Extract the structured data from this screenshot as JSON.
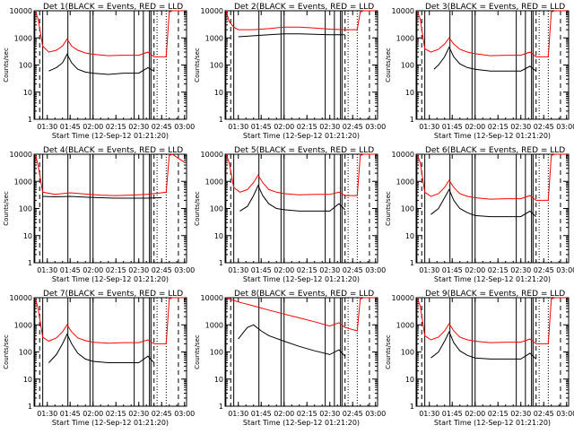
{
  "chart_data": {
    "type": "line",
    "grid": "3x3",
    "ylabel": "Counts/sec",
    "xlabel": "Start Time (12-Sep-12 01:21:20)",
    "yscale": "log",
    "ylim": [
      1,
      10000
    ],
    "ytick_labels": [
      "1",
      "10",
      "100",
      "1000",
      "10000"
    ],
    "xlim": [
      "01:21:20",
      "03:01:20"
    ],
    "xtick_labels": [
      "01:30",
      "01:45",
      "02:00",
      "02:15",
      "02:30",
      "02:45",
      "03:00"
    ],
    "series_colors": {
      "black": "#000000",
      "red": "#ff0000"
    },
    "panels": [
      {
        "title": "Det 1(BLACK = Events, RED = LLD",
        "series": [
          {
            "color": "black",
            "x": [
              "01:31",
              "01:36",
              "01:40",
              "01:43",
              "01:46",
              "01:50",
              "01:55",
              "02:00",
              "02:10",
              "02:20",
              "02:30",
              "02:36",
              "02:40"
            ],
            "y": [
              60,
              80,
              120,
              250,
              120,
              70,
              55,
              50,
              45,
              50,
              50,
              80,
              60
            ]
          },
          {
            "color": "red",
            "x": [
              "01:22",
              "01:24",
              "01:27",
              "01:31",
              "01:36",
              "01:40",
              "01:43",
              "01:46",
              "01:50",
              "01:55",
              "02:00",
              "02:10",
              "02:20",
              "02:30",
              "02:36",
              "02:40",
              "02:48",
              "02:50",
              "02:52",
              "03:00"
            ],
            "y": [
              10000,
              5000,
              500,
              300,
              350,
              500,
              900,
              500,
              350,
              280,
              250,
              220,
              230,
              230,
              300,
              200,
              200,
              9000,
              10000,
              10000
            ]
          }
        ]
      },
      {
        "title": "Det 2(BLACK = Events, RED = LLD",
        "series": [
          {
            "color": "black",
            "x": [
              "01:30",
              "01:40",
              "01:50",
              "02:00",
              "02:10",
              "02:20",
              "02:30",
              "02:40"
            ],
            "y": [
              1100,
              1200,
              1300,
              1400,
              1400,
              1350,
              1300,
              1300
            ]
          },
          {
            "color": "red",
            "x": [
              "01:22",
              "01:24",
              "01:27",
              "01:30",
              "01:40",
              "01:50",
              "02:00",
              "02:10",
              "02:20",
              "02:30",
              "02:40",
              "02:48",
              "02:50",
              "02:52",
              "03:00"
            ],
            "y": [
              10000,
              4000,
              2500,
              2000,
              2000,
              2200,
              2500,
              2500,
              2300,
              2100,
              2000,
              2000,
              9000,
              10000,
              10000
            ]
          }
        ]
      },
      {
        "title": "Det 3(BLACK = Events, RED = LLD",
        "series": [
          {
            "color": "black",
            "x": [
              "01:33",
              "01:36",
              "01:40",
              "01:43",
              "01:46",
              "01:50",
              "01:55",
              "02:00",
              "02:10",
              "02:20",
              "02:30",
              "02:36",
              "02:40"
            ],
            "y": [
              70,
              100,
              200,
              450,
              200,
              110,
              80,
              70,
              60,
              60,
              60,
              90,
              60
            ]
          },
          {
            "color": "red",
            "x": [
              "01:22",
              "01:24",
              "01:27",
              "01:31",
              "01:36",
              "01:40",
              "01:43",
              "01:46",
              "01:50",
              "01:55",
              "02:00",
              "02:10",
              "02:20",
              "02:30",
              "02:36",
              "02:40",
              "02:48",
              "02:50",
              "02:52",
              "03:00"
            ],
            "y": [
              10000,
              5000,
              400,
              300,
              380,
              600,
              1000,
              600,
              380,
              300,
              260,
              220,
              230,
              230,
              300,
              200,
              200,
              9000,
              10000,
              10000
            ]
          }
        ]
      },
      {
        "title": "Det 4(BLACK = Events, RED = LLD",
        "series": [
          {
            "color": "black",
            "x": [
              "01:27",
              "01:35",
              "01:45",
              "01:55",
              "02:05",
              "02:15",
              "02:25",
              "02:35",
              "02:45"
            ],
            "y": [
              280,
              270,
              280,
              260,
              250,
              240,
              240,
              240,
              250
            ]
          },
          {
            "color": "red",
            "x": [
              "01:22",
              "01:24",
              "01:27",
              "01:35",
              "01:45",
              "01:55",
              "02:05",
              "02:15",
              "02:25",
              "02:35",
              "02:45",
              "02:48",
              "02:50",
              "02:52",
              "03:00"
            ],
            "y": [
              10000,
              4000,
              400,
              330,
              380,
              340,
              310,
              300,
              310,
              330,
              380,
              400,
              9000,
              10000,
              5000
            ]
          }
        ]
      },
      {
        "title": "Det 5(BLACK = Events, RED = LLD",
        "series": [
          {
            "color": "black",
            "x": [
              "01:31",
              "01:36",
              "01:40",
              "01:43",
              "01:46",
              "01:50",
              "01:55",
              "02:00",
              "02:10",
              "02:20",
              "02:30",
              "02:36",
              "02:40"
            ],
            "y": [
              80,
              120,
              300,
              700,
              300,
              150,
              100,
              90,
              80,
              80,
              80,
              150,
              90
            ]
          },
          {
            "color": "red",
            "x": [
              "01:22",
              "01:24",
              "01:27",
              "01:31",
              "01:36",
              "01:40",
              "01:43",
              "01:46",
              "01:50",
              "01:55",
              "02:00",
              "02:10",
              "02:20",
              "02:30",
              "02:36",
              "02:40",
              "02:48",
              "02:50",
              "02:52",
              "03:00"
            ],
            "y": [
              10000,
              5000,
              600,
              400,
              500,
              900,
              1700,
              900,
              500,
              400,
              350,
              320,
              330,
              330,
              400,
              300,
              300,
              9000,
              10000,
              10000
            ]
          }
        ]
      },
      {
        "title": "Det 6(BLACK = Events, RED = LLD",
        "series": [
          {
            "color": "black",
            "x": [
              "01:31",
              "01:36",
              "01:40",
              "01:43",
              "01:46",
              "01:50",
              "01:55",
              "02:00",
              "02:10",
              "02:20",
              "02:30",
              "02:36",
              "02:40"
            ],
            "y": [
              60,
              100,
              250,
              500,
              200,
              100,
              70,
              55,
              50,
              50,
              50,
              80,
              50
            ]
          },
          {
            "color": "red",
            "x": [
              "01:22",
              "01:24",
              "01:27",
              "01:31",
              "01:36",
              "01:40",
              "01:43",
              "01:46",
              "01:50",
              "01:55",
              "02:00",
              "02:10",
              "02:20",
              "02:30",
              "02:36",
              "02:40",
              "02:48",
              "02:50",
              "02:52",
              "03:00"
            ],
            "y": [
              10000,
              5000,
              400,
              280,
              350,
              600,
              1100,
              600,
              350,
              280,
              250,
              220,
              230,
              230,
              300,
              200,
              200,
              9000,
              10000,
              10000
            ]
          }
        ]
      },
      {
        "title": "Det 7(BLACK = Events, RED = LLD",
        "series": [
          {
            "color": "black",
            "x": [
              "01:31",
              "01:36",
              "01:40",
              "01:43",
              "01:46",
              "01:50",
              "01:55",
              "02:00",
              "02:10",
              "02:20",
              "02:30",
              "02:36",
              "02:40"
            ],
            "y": [
              40,
              80,
              200,
              450,
              200,
              90,
              55,
              45,
              40,
              40,
              40,
              70,
              40
            ]
          },
          {
            "color": "red",
            "x": [
              "01:22",
              "01:24",
              "01:27",
              "01:31",
              "01:36",
              "01:40",
              "01:43",
              "01:46",
              "01:50",
              "01:55",
              "02:00",
              "02:10",
              "02:20",
              "02:30",
              "02:36",
              "02:40",
              "02:48",
              "02:50",
              "02:52",
              "03:00"
            ],
            "y": [
              10000,
              4000,
              350,
              250,
              330,
              550,
              1000,
              550,
              330,
              260,
              230,
              210,
              220,
              220,
              280,
              200,
              200,
              9000,
              10000,
              10000
            ]
          }
        ]
      },
      {
        "title": "Det 8(BLACK = Events, RED = LLD",
        "series": [
          {
            "color": "black",
            "x": [
              "01:30",
              "01:33",
              "01:36",
              "01:40",
              "01:45",
              "01:50",
              "02:00",
              "02:10",
              "02:20",
              "02:30",
              "02:36",
              "02:40"
            ],
            "y": [
              300,
              500,
              800,
              1000,
              600,
              400,
              250,
              160,
              110,
              80,
              120,
              70
            ]
          },
          {
            "color": "red",
            "x": [
              "01:22",
              "01:24",
              "01:30",
              "01:40",
              "01:50",
              "02:00",
              "02:10",
              "02:20",
              "02:30",
              "02:36",
              "02:40",
              "02:48",
              "02:50",
              "02:52",
              "03:00"
            ],
            "y": [
              10000,
              9000,
              7000,
              5000,
              3500,
              2500,
              1800,
              1300,
              900,
              1200,
              800,
              600,
              9000,
              10000,
              10000
            ]
          }
        ]
      },
      {
        "title": "Det 9(BLACK = Events, RED = LLD",
        "series": [
          {
            "color": "black",
            "x": [
              "01:31",
              "01:36",
              "01:40",
              "01:43",
              "01:46",
              "01:50",
              "01:55",
              "02:00",
              "02:10",
              "02:20",
              "02:30",
              "02:36",
              "02:40"
            ],
            "y": [
              60,
              100,
              250,
              550,
              220,
              110,
              75,
              60,
              55,
              55,
              55,
              90,
              55
            ]
          },
          {
            "color": "red",
            "x": [
              "01:22",
              "01:24",
              "01:27",
              "01:31",
              "01:36",
              "01:40",
              "01:43",
              "01:46",
              "01:50",
              "01:55",
              "02:00",
              "02:10",
              "02:20",
              "02:30",
              "02:36",
              "02:40",
              "02:48",
              "02:50",
              "02:52",
              "03:00"
            ],
            "y": [
              10000,
              5000,
              400,
              280,
              350,
              600,
              1100,
              600,
              350,
              280,
              250,
              220,
              230,
              230,
              300,
              200,
              200,
              9000,
              10000,
              10000
            ]
          }
        ]
      }
    ]
  }
}
